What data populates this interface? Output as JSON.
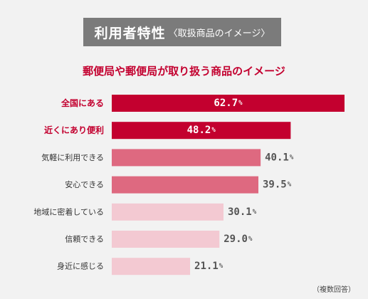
{
  "header": {
    "title": "利用者特性",
    "subtitle": "〈取扱商品のイメージ〉"
  },
  "chart_data": {
    "type": "bar",
    "orientation": "horizontal",
    "title": "郵便局や郵便局が取り扱う商品のイメージ",
    "categories": [
      "全国にある",
      "近くにあり便利",
      "気軽に利用できる",
      "安心できる",
      "地域に密着している",
      "信頼できる",
      "身近に感じる"
    ],
    "values": [
      62.7,
      48.2,
      40.1,
      39.5,
      30.1,
      29.0,
      21.1
    ],
    "value_labels": [
      "62.7",
      "48.2",
      "40.1",
      "39.5",
      "30.1",
      "29.0",
      "21.1"
    ],
    "unit": "%",
    "xlim": [
      0,
      62.7
    ],
    "grid": false,
    "colors": {
      "top": "#c3002f",
      "middle": "#de6980",
      "low": "#f3c9d2",
      "top_label": "#c3002f",
      "other_label": "#333333",
      "outside_value": "#555555"
    },
    "color_tiers": [
      "top",
      "top",
      "middle",
      "middle",
      "low",
      "low",
      "low"
    ],
    "note": "（複数回答）"
  }
}
